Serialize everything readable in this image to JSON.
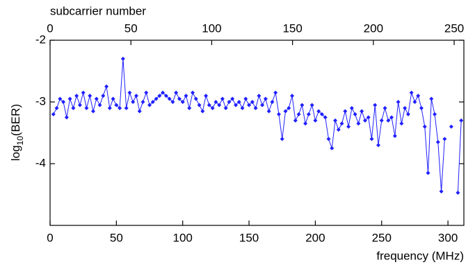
{
  "chart_data": {
    "type": "line",
    "xlabel": "frequency (MHz)",
    "x2label": "subcarrier number",
    "ylabel_parts": [
      "log",
      "10",
      "(BER)"
    ],
    "xlim": [
      0,
      312
    ],
    "xticks": [
      0,
      50,
      100,
      150,
      200,
      250,
      300
    ],
    "x2lim": [
      0,
      256
    ],
    "x2ticks": [
      0,
      50,
      100,
      150,
      200,
      250
    ],
    "ylim": [
      -5,
      -2
    ],
    "yticks": [
      -4,
      -3,
      -2
    ],
    "grid": false,
    "x": [
      2.5,
      5,
      7.5,
      10,
      12.5,
      15,
      17.5,
      20,
      22.5,
      25,
      27.5,
      30,
      32.5,
      35,
      37.5,
      40,
      42.5,
      45,
      47.5,
      50,
      52.5,
      55,
      57.5,
      60,
      62.5,
      65,
      67.5,
      70,
      72.5,
      75,
      77.5,
      80,
      82.5,
      85,
      87.5,
      90,
      92.5,
      95,
      97.5,
      100,
      102.5,
      105,
      107.5,
      110,
      112.5,
      115,
      117.5,
      120,
      122.5,
      125,
      127.5,
      130,
      132.5,
      135,
      137.5,
      140,
      142.5,
      145,
      147.5,
      150,
      152.5,
      155,
      157.5,
      160,
      162.5,
      165,
      167.5,
      170,
      172.5,
      175,
      177.5,
      180,
      182.5,
      185,
      187.5,
      190,
      192.5,
      195,
      197.5,
      200,
      202.5,
      205,
      207.5,
      210,
      212.5,
      215,
      217.5,
      220,
      222.5,
      225,
      227.5,
      230,
      232.5,
      235,
      237.5,
      240,
      242.5,
      245,
      247.5,
      250,
      252.5,
      255,
      257.5,
      260,
      262.5,
      265,
      267.5,
      270,
      272.5,
      275,
      277.5,
      280,
      282.5,
      285,
      287.5,
      290,
      292.5,
      295,
      297.5,
      300,
      302.5,
      305,
      307.5,
      310
    ],
    "series": [
      {
        "name": "BER",
        "color": "#1f1fff",
        "values": [
          -3.2,
          -3.1,
          -2.95,
          -3.0,
          -3.25,
          -2.95,
          -3.1,
          -2.9,
          -3.05,
          -2.85,
          -3.1,
          -2.9,
          -3.15,
          -2.95,
          -3.05,
          -2.9,
          -2.75,
          -3.1,
          -2.95,
          -3.05,
          -3.1,
          -2.3,
          -3.1,
          -2.85,
          -3.0,
          -2.9,
          -3.15,
          -3.0,
          -2.85,
          -3.05,
          -3.0,
          -2.95,
          -2.9,
          -2.85,
          -2.9,
          -2.95,
          -3.0,
          -2.85,
          -2.95,
          -3.0,
          -2.9,
          -3.1,
          -2.85,
          -2.95,
          -3.05,
          -3.15,
          -2.9,
          -3.05,
          -3.1,
          -3.0,
          -3.05,
          -2.95,
          -3.1,
          -3.0,
          -2.95,
          -3.05,
          -3.0,
          -3.1,
          -2.95,
          -3.05,
          -3.0,
          -3.1,
          -2.9,
          -3.05,
          -2.95,
          -3.15,
          -3.0,
          -2.85,
          -3.2,
          -3.6,
          -3.15,
          -3.1,
          -2.9,
          -3.3,
          -3.2,
          -3.05,
          -3.35,
          -3.2,
          -3.05,
          -3.3,
          -3.15,
          -3.2,
          -3.25,
          -3.6,
          -3.75,
          -3.3,
          -3.45,
          -3.35,
          -3.15,
          -3.4,
          -3.1,
          -3.2,
          -3.35,
          -3.15,
          -3.3,
          -3.25,
          -3.6,
          -3.05,
          -3.7,
          -3.3,
          -3.1,
          -3.3,
          -3.25,
          -3.55,
          -3.0,
          -3.35,
          -3.1,
          -3.2,
          -2.85,
          -3.0,
          -2.9,
          -3.1,
          -3.4,
          -4.15,
          -2.95,
          -3.2,
          -3.65,
          -4.45,
          -3.6,
          null,
          -3.4,
          null,
          -4.47,
          -3.3
        ]
      }
    ]
  }
}
